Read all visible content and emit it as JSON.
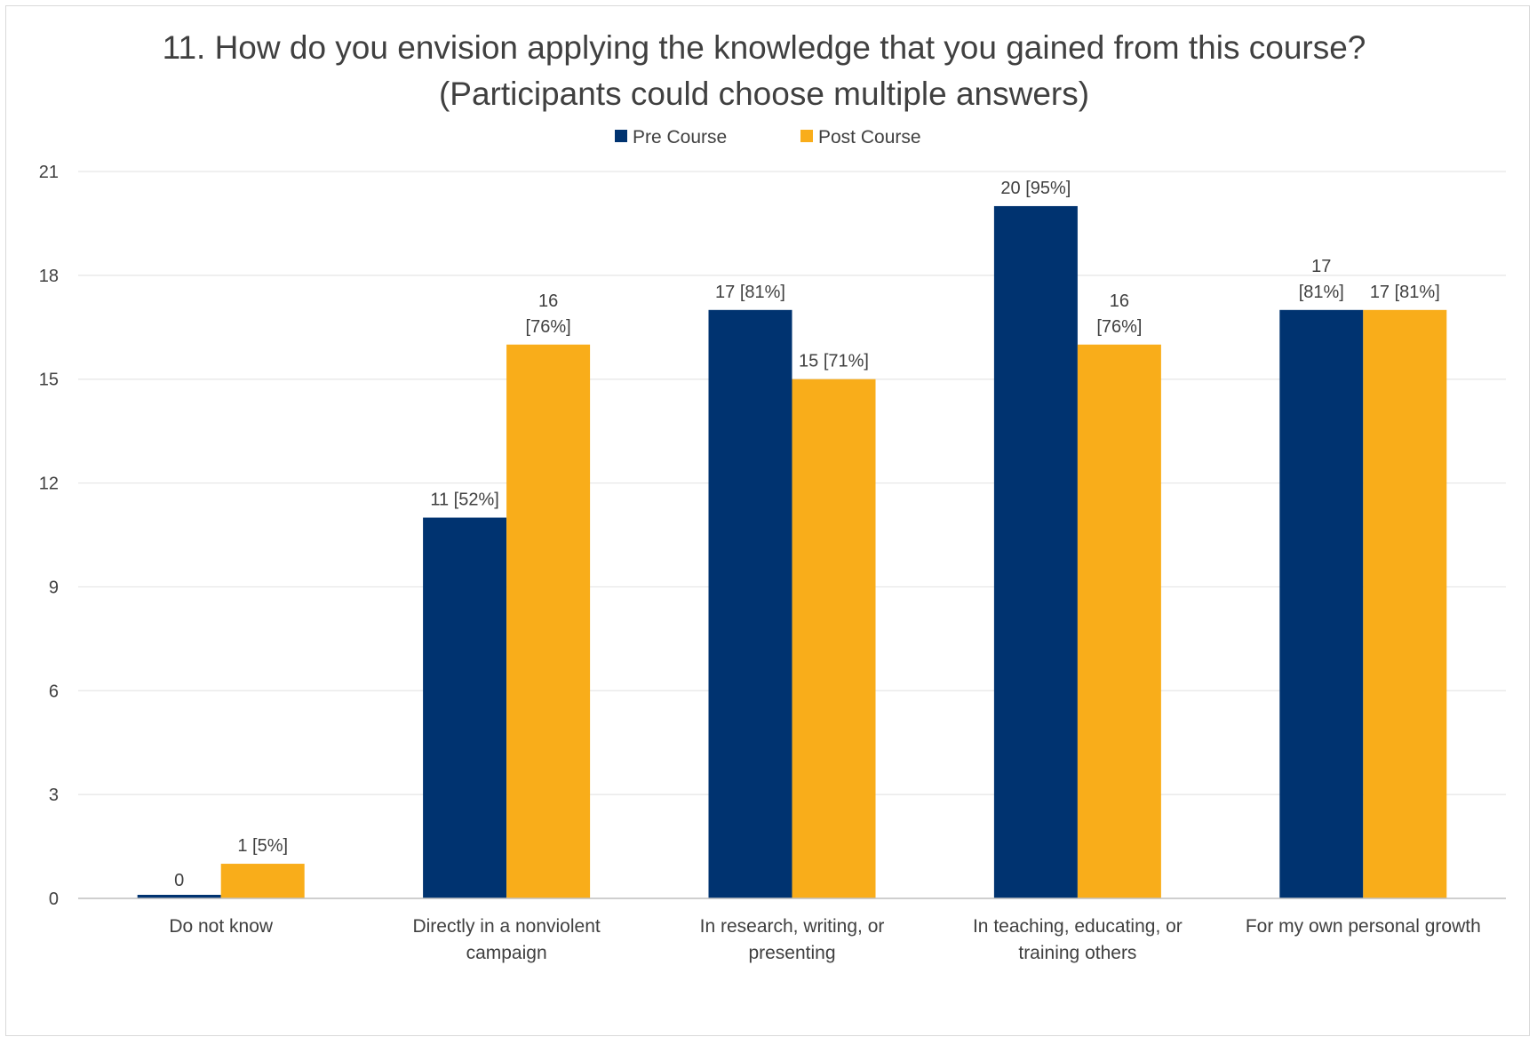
{
  "chart_data": {
    "type": "bar",
    "title": "11. How do you envision applying the knowledge that you gained from this course? (Participants could choose multiple answers)",
    "categories": [
      [
        "Do not know"
      ],
      [
        "Directly in a nonviolent",
        "campaign"
      ],
      [
        "In research, writing, or",
        "presenting"
      ],
      [
        "In teaching, educating, or",
        "training others"
      ],
      [
        "For my own personal growth"
      ]
    ],
    "series": [
      {
        "name": "Pre Course",
        "color": "#003370",
        "values": [
          0,
          11,
          17,
          20,
          17
        ],
        "labels": [
          [
            "0"
          ],
          [
            "11 [52%]"
          ],
          [
            "17 [81%]"
          ],
          [
            "20 [95%]"
          ],
          [
            "17",
            "[81%]"
          ]
        ]
      },
      {
        "name": "Post Course",
        "color": "#f9ad1a",
        "values": [
          1,
          16,
          15,
          16,
          17
        ],
        "labels": [
          [
            "1 [5%]"
          ],
          [
            "16",
            "[76%]"
          ],
          [
            "15 [71%]"
          ],
          [
            "16",
            "[76%]"
          ],
          [
            "17 [81%]"
          ]
        ]
      }
    ],
    "ylim": [
      0,
      21
    ],
    "yticks": [
      0,
      3,
      6,
      9,
      12,
      15,
      18,
      21
    ],
    "xlabel": "",
    "ylabel": "",
    "grid": true,
    "legend": "top-center"
  }
}
